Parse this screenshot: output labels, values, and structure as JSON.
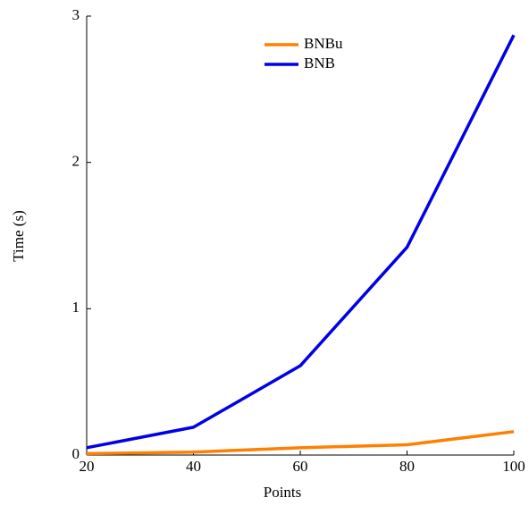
{
  "chart_data": {
    "type": "line",
    "x_label": "Points",
    "y_label": "Time (s)",
    "x": [
      20,
      40,
      60,
      80,
      100
    ],
    "series": [
      {
        "name": "BNBu",
        "color": "#ff8000",
        "values": [
          0.01,
          0.02,
          0.05,
          0.07,
          0.16
        ]
      },
      {
        "name": "BNB",
        "color": "#0000e6",
        "values": [
          0.05,
          0.19,
          0.61,
          1.42,
          2.87
        ]
      }
    ],
    "xlim": [
      20,
      100
    ],
    "ylim": [
      0,
      3
    ],
    "xticks": [
      20,
      40,
      60,
      80,
      100
    ],
    "yticks": [
      0,
      1,
      2,
      3
    ],
    "legend": "upper-center"
  }
}
